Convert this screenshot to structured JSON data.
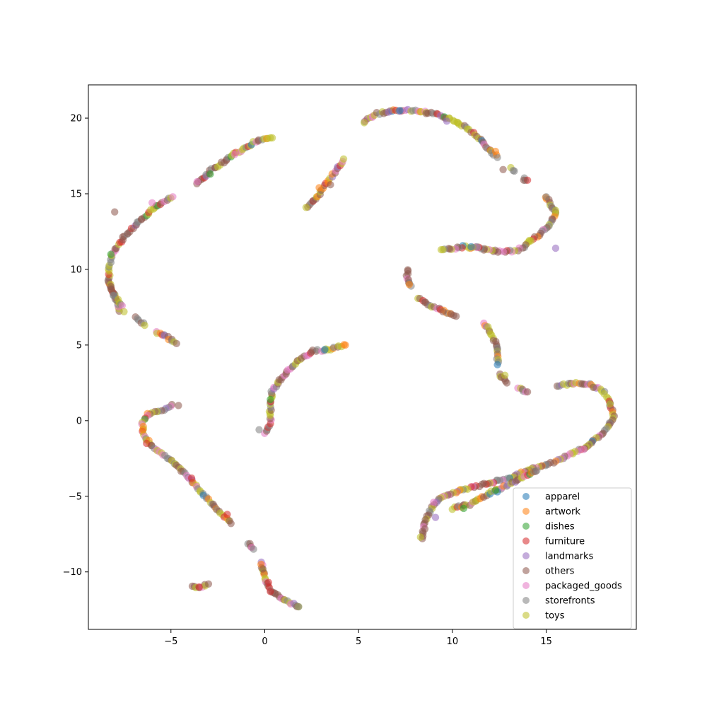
{
  "chart_data": {
    "type": "scatter",
    "title": "",
    "xlabel": "",
    "ylabel": "",
    "xlim": [
      -9.4,
      19.8
    ],
    "ylim": [
      -13.8,
      22.2
    ],
    "xticks": [
      -5,
      0,
      5,
      10,
      15
    ],
    "yticks": [
      -10,
      -5,
      0,
      5,
      10,
      15,
      20
    ],
    "xtick_labels": [
      "−5",
      "0",
      "5",
      "10",
      "15"
    ],
    "ytick_labels": [
      "−10",
      "−5",
      "0",
      "5",
      "10",
      "15",
      "20"
    ],
    "grid": false,
    "legend_position": "lower-right",
    "marker_alpha": 0.55,
    "palette": {
      "apparel": "#1f77b4",
      "artwork": "#ff7f0e",
      "dishes": "#2ca02c",
      "furniture": "#d62728",
      "landmarks": "#9467bd",
      "others": "#8c564b",
      "packaged_goods": "#e377c2",
      "storefronts": "#7f7f7f",
      "toys": "#bcbd22"
    },
    "series": [
      {
        "name": "apparel",
        "x": [
          3.2,
          11.0,
          7.2,
          12.4
        ],
        "y": [
          4.7,
          11.5,
          20.5,
          -4.7
        ]
      },
      {
        "name": "artwork",
        "x": [
          -0.2,
          7.7,
          2.9,
          12.3,
          -6.5
        ],
        "y": [
          -9.5,
          9.0,
          15.4,
          17.8,
          -0.6
        ]
      },
      {
        "name": "dishes",
        "x": [
          -2.9,
          0.3,
          10.6,
          12.3,
          -8.2
        ],
        "y": [
          16.3,
          1.4,
          -5.8,
          -4.6,
          11.0
        ]
      },
      {
        "name": "furniture",
        "x": [
          -3.5,
          0.3,
          -6.3,
          -2.0,
          -3.9,
          0.2
        ],
        "y": [
          -11.0,
          -11.3,
          -1.5,
          -6.2,
          -3.8,
          -10.7
        ]
      },
      {
        "name": "landmarks",
        "x": [
          9.7,
          6.6,
          9.1,
          15.5
        ],
        "y": [
          19.8,
          20.4,
          -6.4,
          11.4
        ]
      },
      {
        "name": "others",
        "x": [
          -8.0,
          -0.1,
          8.6,
          13.8,
          17.5,
          12.7,
          -4.6,
          3.5,
          9.5,
          14.0
        ],
        "y": [
          13.8,
          -9.8,
          20.3,
          15.9,
          2.2,
          16.6,
          1.0,
          15.6,
          7.2,
          1.9
        ]
      },
      {
        "name": "packaged_goods",
        "x": [
          -6.0,
          -3.6,
          -1.6,
          17.0,
          9.0
        ],
        "y": [
          14.4,
          15.8,
          17.6,
          -1.9,
          -5.4
        ]
      },
      {
        "name": "storefronts",
        "x": [
          15.0,
          1.8,
          -0.3,
          11.3,
          12.4
        ],
        "y": [
          14.8,
          -12.3,
          -0.6,
          11.5,
          4.8
        ]
      },
      {
        "name": "toys",
        "x": [
          -7.5,
          0.4,
          5.3,
          9.4,
          11.9,
          15.5,
          18.4,
          8.3,
          2.2,
          12.8
        ],
        "y": [
          7.2,
          18.7,
          19.7,
          11.3,
          6.2,
          13.9,
          1.1,
          -7.7,
          14.1,
          3.0
        ]
      }
    ]
  }
}
